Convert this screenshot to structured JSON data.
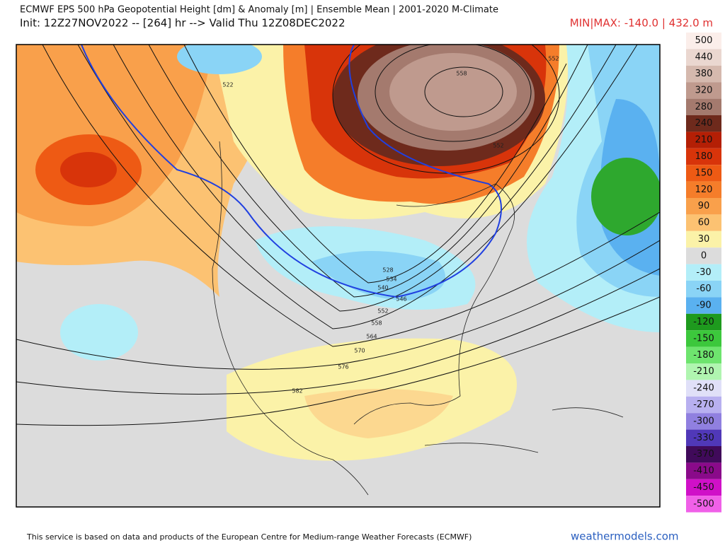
{
  "header": {
    "title": "ECMWF EPS 500 hPa Geopotential Height [dm] & Anomaly [m] | Ensemble Mean | 2001-2020 M-Climate",
    "subtitle": "Init: 12Z27NOV2022 -- [264] hr --> Valid Thu 12Z08DEC2022",
    "minmax": "MIN|MAX: -140.0 | 432.0 m"
  },
  "legend": {
    "labels": [
      "500",
      "440",
      "380",
      "320",
      "280",
      "240",
      "210",
      "180",
      "150",
      "120",
      "90",
      "60",
      "30",
      "0",
      "-30",
      "-60",
      "-90",
      "-120",
      "-150",
      "-180",
      "-210",
      "-240",
      "-270",
      "-300",
      "-330",
      "-370",
      "-410",
      "-450",
      "-500"
    ],
    "colors": [
      "#fbeeea",
      "#ead7d0",
      "#d5b9ae",
      "#bf9a8e",
      "#a47a6e",
      "#6e2a1c",
      "#b41f05",
      "#d8340a",
      "#ee5a14",
      "#f57d2a",
      "#f9a04b",
      "#fcc272",
      "#fbf2a8",
      "#dcdcdc",
      "#b3eef8",
      "#8ad4f6",
      "#5ab1f0",
      "#1e9a1e",
      "#3cc83c",
      "#6ee46e",
      "#b0f5b0",
      "#e0e0f8",
      "#b8b0f0",
      "#9080e0",
      "#5038b8",
      "#400a5a",
      "#8a0a8a",
      "#d010c8",
      "#f060e8"
    ]
  },
  "map": {
    "contour_labels": [
      "552",
      "558",
      "552",
      "522",
      "528",
      "534",
      "540",
      "546",
      "552",
      "558",
      "564",
      "570",
      "576",
      "582"
    ]
  },
  "footer": {
    "notice": "This service is based on data and products of the European Centre for Medium-range Weather Forecasts (ECMWF)",
    "site": "weathermodels.com"
  }
}
